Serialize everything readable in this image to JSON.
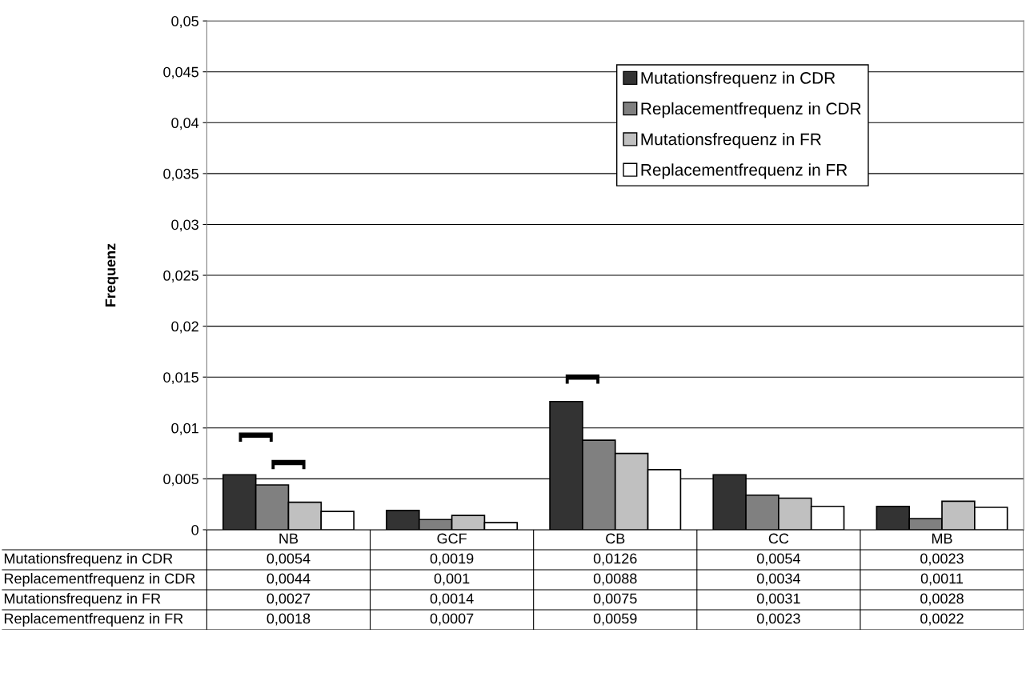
{
  "chart_data": {
    "type": "bar",
    "ylabel": "Frequenz",
    "categories": [
      "NB",
      "GCF",
      "CB",
      "CC",
      "MB"
    ],
    "series": [
      {
        "name": "Mutationsfrequenz in CDR",
        "color": "#333333",
        "values": [
          0.0054,
          0.0019,
          0.0126,
          0.0054,
          0.0023
        ],
        "value_labels": [
          "0,0054",
          "0,0019",
          "0,0126",
          "0,0054",
          "0,0023"
        ]
      },
      {
        "name": "Replacementfrequenz in CDR",
        "color": "#808080",
        "values": [
          0.0044,
          0.001,
          0.0088,
          0.0034,
          0.0011
        ],
        "value_labels": [
          "0,0044",
          "0,001",
          "0,0088",
          "0,0034",
          "0,0011"
        ]
      },
      {
        "name": "Mutationsfrequenz in FR",
        "color": "#c0c0c0",
        "values": [
          0.0027,
          0.0014,
          0.0075,
          0.0031,
          0.0028
        ],
        "value_labels": [
          "0,0027",
          "0,0014",
          "0,0075",
          "0,0031",
          "0,0028"
        ]
      },
      {
        "name": "Replacementfrequenz in FR",
        "color": "#ffffff",
        "values": [
          0.0018,
          0.0007,
          0.0059,
          0.0023,
          0.0022
        ],
        "value_labels": [
          "0,0018",
          "0,0007",
          "0,0059",
          "0,0023",
          "0,0022"
        ]
      }
    ],
    "ylim": [
      0,
      0.05
    ],
    "yticks": [
      0,
      {
        "value": 0.005,
        "label": "0,005"
      },
      {
        "value": 0.01,
        "label": "0,01"
      },
      {
        "value": 0.015,
        "label": "0,015"
      },
      {
        "value": 0.02,
        "label": "0,02"
      },
      {
        "value": 0.025,
        "label": "0,025"
      },
      {
        "value": 0.03,
        "label": "0,03"
      },
      {
        "value": 0.035,
        "label": "0,035"
      },
      {
        "value": 0.04,
        "label": "0,04"
      },
      {
        "value": 0.045,
        "label": "0,045"
      },
      {
        "value": 0.05,
        "label": "0,05"
      }
    ],
    "grid": "y",
    "legend": "top right"
  }
}
